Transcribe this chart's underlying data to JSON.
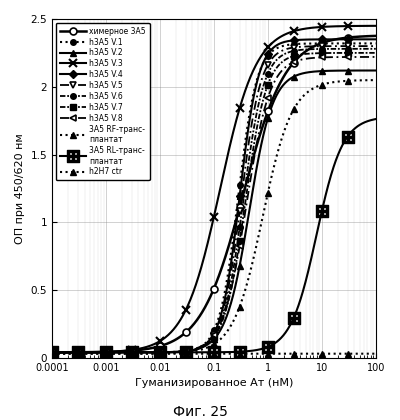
{
  "title": "Фиг. 25",
  "xlabel": "Гуманизированное Ат (нМ)",
  "ylabel": "ОП при 450/620 нм",
  "xmin": 0.0001,
  "xmax": 100,
  "ymin": 0,
  "ymax": 2.5,
  "series": [
    {
      "label": "химерное 3А5",
      "linestyle": "solid",
      "marker": "o",
      "markerfill": "white",
      "linewidth": 1.8,
      "ec50": 0.35,
      "top": 2.38,
      "hill": 1.1,
      "bottom": 0.04
    },
    {
      "label": "h3А5 V.1",
      "linestyle": "dotted",
      "marker": "o",
      "markerfill": "black",
      "linewidth": 1.5,
      "ec50": 0.28,
      "top": 2.32,
      "hill": 2.5,
      "bottom": 0.04
    },
    {
      "label": "h3А5 V.2",
      "linestyle": "solid",
      "marker": "^",
      "markerfill": "black",
      "linewidth": 1.5,
      "ec50": 0.45,
      "top": 2.12,
      "hill": 2.0,
      "bottom": 0.04
    },
    {
      "label": "h3А5 V.3",
      "linestyle": "solid",
      "marker": "x",
      "markerfill": "black",
      "linewidth": 1.5,
      "ec50": 0.13,
      "top": 2.45,
      "hill": 1.3,
      "bottom": 0.04
    },
    {
      "label": "h3А5 V.4",
      "linestyle": "solid",
      "marker": "D",
      "markerfill": "black",
      "linewidth": 1.5,
      "ec50": 0.3,
      "top": 2.35,
      "hill": 2.5,
      "bottom": 0.04
    },
    {
      "label": "h3А5 V.5",
      "linestyle": [
        5,
        2,
        1,
        2
      ],
      "marker": "v",
      "markerfill": "white",
      "linewidth": 1.3,
      "ec50": 0.32,
      "top": 2.3,
      "hill": 2.4,
      "bottom": 0.04
    },
    {
      "label": "h3А5 V.6",
      "linestyle": [
        3,
        1,
        1,
        1
      ],
      "marker": "o",
      "markerfill": "black",
      "linewidth": 1.3,
      "ec50": 0.35,
      "top": 2.28,
      "hill": 2.3,
      "bottom": 0.04
    },
    {
      "label": "h3А5 V.7",
      "linestyle": [
        3,
        1,
        1,
        1
      ],
      "marker": "s",
      "markerfill": "black",
      "linewidth": 1.3,
      "ec50": 0.38,
      "top": 2.25,
      "hill": 2.2,
      "bottom": 0.04
    },
    {
      "label": "h3А5 V.8",
      "linestyle": [
        5,
        2,
        1,
        2
      ],
      "marker": "<",
      "markerfill": "white",
      "linewidth": 1.3,
      "ec50": 0.4,
      "top": 2.22,
      "hill": 2.0,
      "bottom": 0.04
    },
    {
      "label": "3А5 RF-транс-\nплантат",
      "linestyle": "dotted",
      "marker": "^",
      "markerfill": "black",
      "linewidth": 1.5,
      "ec50": 0.8,
      "top": 2.05,
      "hill": 1.6,
      "bottom": 0.03
    },
    {
      "label": "3А5 RL-транс-\nплантат",
      "linestyle": "solid",
      "marker": "square_cross",
      "markerfill": "white",
      "linewidth": 1.5,
      "ec50": 8.0,
      "top": 1.78,
      "hill": 1.8,
      "bottom": 0.04
    },
    {
      "label": "h2H7 ctr",
      "linestyle": "dotted",
      "marker": "^",
      "markerfill": "black",
      "linewidth": 1.5,
      "ec50": 9999,
      "top": 0.05,
      "hill": 1.0,
      "bottom": 0.03
    }
  ],
  "sample_x": [
    0.0001,
    0.0003,
    0.001,
    0.003,
    0.01,
    0.03,
    0.1,
    0.3,
    1.0,
    3.0,
    10.0,
    30.0
  ]
}
